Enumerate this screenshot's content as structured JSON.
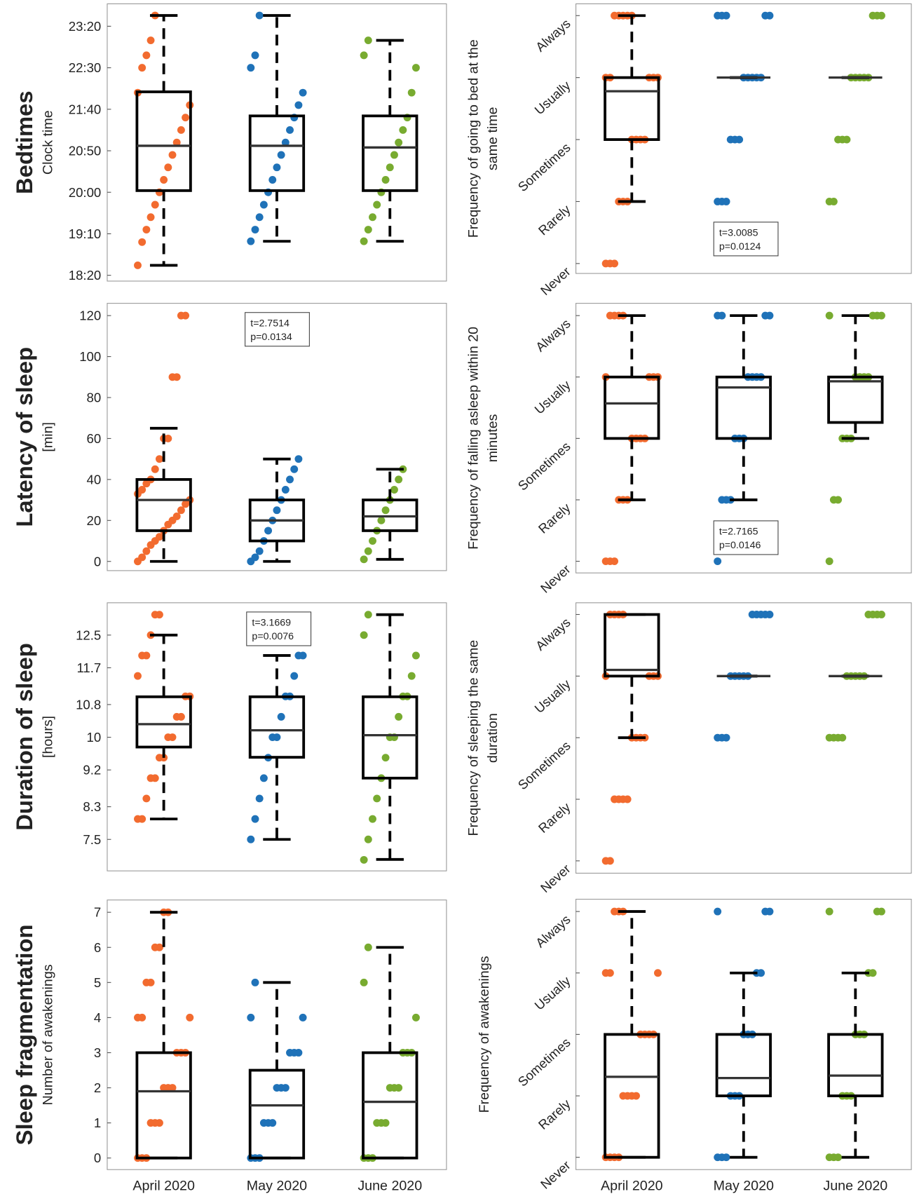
{
  "chart_data": [
    {
      "type": "box",
      "row_title": "Bedtimes",
      "ylabel": [
        "Clock time"
      ],
      "ylim": [
        1093,
        1427
      ],
      "yticks": [
        {
          "value": 1100,
          "label": "18:20"
        },
        {
          "value": 1150,
          "label": "19:10"
        },
        {
          "value": 1200,
          "label": "20:00"
        },
        {
          "value": 1250,
          "label": "20:50"
        },
        {
          "value": 1300,
          "label": "21:40"
        },
        {
          "value": 1350,
          "label": "22:30"
        },
        {
          "value": 1400,
          "label": "23:20"
        }
      ],
      "series": [
        {
          "color": "#f26b2f",
          "box": {
            "low": 1112,
            "q1": 1202,
            "median": 1256,
            "q3": 1321,
            "high": 1413
          },
          "points": [
            1112,
            1140,
            1155,
            1170,
            1185,
            1200,
            1215,
            1230,
            1245,
            1260,
            1275,
            1290,
            1305,
            1320,
            1350,
            1365,
            1383,
            1413
          ]
        },
        {
          "color": "#1f72b8",
          "box": {
            "low": 1141,
            "q1": 1202,
            "median": 1256,
            "q3": 1292,
            "high": 1413
          },
          "points": [
            1141,
            1155,
            1170,
            1185,
            1200,
            1215,
            1230,
            1245,
            1260,
            1275,
            1290,
            1305,
            1320,
            1350,
            1365,
            1413
          ]
        },
        {
          "color": "#78ab30",
          "box": {
            "low": 1141,
            "q1": 1202,
            "median": 1254,
            "q3": 1292,
            "high": 1383
          },
          "points": [
            1141,
            1155,
            1170,
            1185,
            1200,
            1215,
            1230,
            1245,
            1260,
            1275,
            1290,
            1320,
            1350,
            1365,
            1383
          ]
        }
      ]
    },
    {
      "type": "box",
      "ylabel": [
        "Frequency of going to bed at the",
        "same time"
      ],
      "ylim": [
        -0.16,
        4.19
      ],
      "yticks": [
        {
          "value": 0,
          "label": "Never"
        },
        {
          "value": 1,
          "label": "Rarely"
        },
        {
          "value": 2,
          "label": "Sometimes"
        },
        {
          "value": 3,
          "label": "Usually"
        },
        {
          "value": 4,
          "label": "Always"
        }
      ],
      "annotation": [
        "t=3.0085",
        "p=0.0124"
      ],
      "series": [
        {
          "color": "#f26b2f",
          "box": {
            "low": 1,
            "q1": 2,
            "median": 2.78,
            "q3": 3,
            "high": 4
          },
          "points": [
            0,
            0,
            0,
            1,
            1,
            1,
            2,
            2,
            2,
            2,
            3,
            3,
            3,
            3,
            3,
            4,
            4,
            4,
            4,
            4
          ]
        },
        {
          "color": "#1f72b8",
          "box": {
            "low": 3,
            "q1": 3,
            "median": 3,
            "q3": 3,
            "high": 3
          },
          "points": [
            1,
            1,
            1,
            2,
            2,
            2,
            3,
            3,
            3,
            3,
            3,
            4,
            4,
            4,
            4,
            4
          ]
        },
        {
          "color": "#78ab30",
          "box": {
            "low": 3,
            "q1": 3,
            "median": 3,
            "q3": 3,
            "high": 3
          },
          "points": [
            1,
            1,
            2,
            2,
            2,
            3,
            3,
            3,
            3,
            3,
            4,
            4,
            4
          ]
        }
      ]
    },
    {
      "type": "box",
      "row_title": "Latency of sleep",
      "ylabel": [
        "[min]"
      ],
      "ylim": [
        -4.5,
        126
      ],
      "yticks": [
        0,
        20,
        40,
        60,
        80,
        100,
        120
      ],
      "annotation": [
        "t=2.7514",
        "p=0.0134"
      ],
      "series": [
        {
          "color": "#f26b2f",
          "box": {
            "low": 0,
            "q1": 15,
            "median": 30,
            "q3": 40,
            "high": 65
          },
          "points": [
            0,
            2,
            5,
            8,
            10,
            12,
            15,
            18,
            20,
            22,
            25,
            28,
            30,
            33,
            35,
            38,
            40,
            45,
            50,
            60,
            60,
            90,
            90,
            120,
            120
          ]
        },
        {
          "color": "#1f72b8",
          "box": {
            "low": 0,
            "q1": 10,
            "median": 20,
            "q3": 30,
            "high": 50
          },
          "points": [
            0,
            2,
            5,
            10,
            15,
            20,
            25,
            30,
            35,
            40,
            45,
            50
          ]
        },
        {
          "color": "#78ab30",
          "box": {
            "low": 1,
            "q1": 15,
            "median": 22,
            "q3": 30,
            "high": 45
          },
          "points": [
            1,
            5,
            10,
            15,
            20,
            25,
            30,
            35,
            40,
            45
          ]
        }
      ]
    },
    {
      "type": "box",
      "ylabel": [
        "Frequency of falling asleep within 20",
        "minutes"
      ],
      "ylim": [
        -0.19,
        4.2
      ],
      "yticks": [
        {
          "value": 0,
          "label": "Never"
        },
        {
          "value": 1,
          "label": "Rarely"
        },
        {
          "value": 2,
          "label": "Sometimes"
        },
        {
          "value": 3,
          "label": "Usually"
        },
        {
          "value": 4,
          "label": "Always"
        }
      ],
      "annotation": [
        "t=2.7165",
        "p=0.0146"
      ],
      "series": [
        {
          "color": "#f26b2f",
          "box": {
            "low": 1,
            "q1": 2,
            "median": 2.57,
            "q3": 3,
            "high": 4
          },
          "points": [
            0,
            0,
            0,
            1,
            1,
            1,
            2,
            2,
            2,
            2,
            3,
            3,
            3,
            3,
            4,
            4,
            4,
            4
          ]
        },
        {
          "color": "#1f72b8",
          "box": {
            "low": 1,
            "q1": 2,
            "median": 2.83,
            "q3": 3,
            "high": 4
          },
          "points": [
            0,
            1,
            1,
            1,
            2,
            2,
            2,
            3,
            3,
            3,
            3,
            4,
            4,
            4,
            4
          ]
        },
        {
          "color": "#78ab30",
          "box": {
            "low": 2,
            "q1": 2.26,
            "median": 2.93,
            "q3": 3,
            "high": 4
          },
          "points": [
            0,
            1,
            1,
            2,
            2,
            2,
            3,
            3,
            3,
            3,
            4,
            4,
            4,
            4
          ]
        }
      ]
    },
    {
      "type": "box",
      "row_title": "Duration of sleep",
      "ylabel": [
        "[hours]"
      ],
      "ylim": [
        6.73,
        13.29
      ],
      "yticks": [
        7.5,
        8.3,
        9.2,
        10,
        10.8,
        11.7,
        12.5
      ],
      "annotation": [
        "t=3.1669",
        "p=0.0076"
      ],
      "series": [
        {
          "color": "#f26b2f",
          "box": {
            "low": 8,
            "q1": 9.76,
            "median": 10.32,
            "q3": 10.99,
            "high": 12.5
          },
          "points": [
            8,
            8,
            8.5,
            9,
            9,
            9.5,
            9.5,
            10,
            10,
            10.5,
            10.5,
            11,
            11,
            11.5,
            12,
            12,
            12.5,
            13,
            13
          ]
        },
        {
          "color": "#1f72b8",
          "box": {
            "low": 7.5,
            "q1": 9.51,
            "median": 10.17,
            "q3": 10.99,
            "high": 12
          },
          "points": [
            7.5,
            8,
            8.5,
            9,
            9.5,
            10,
            10,
            10.5,
            11,
            11,
            11.5,
            12,
            12
          ]
        },
        {
          "color": "#78ab30",
          "box": {
            "low": 7.01,
            "q1": 9,
            "median": 10.05,
            "q3": 10.99,
            "high": 13
          },
          "points": [
            7,
            7.5,
            8,
            8.5,
            9,
            9.5,
            10,
            10,
            10.5,
            11,
            11,
            11.5,
            12,
            12.5,
            13
          ]
        }
      ]
    },
    {
      "type": "box",
      "ylabel": [
        "Frequency of sleeping the same",
        "duration"
      ],
      "ylim": [
        -0.2,
        4.19
      ],
      "yticks": [
        {
          "value": 0,
          "label": "Never"
        },
        {
          "value": 1,
          "label": "Rarely"
        },
        {
          "value": 2,
          "label": "Sometimes"
        },
        {
          "value": 3,
          "label": "Usually"
        },
        {
          "value": 4,
          "label": "Always"
        }
      ],
      "series": [
        {
          "color": "#f26b2f",
          "box": {
            "low": 2,
            "q1": 3,
            "median": 3.1,
            "q3": 4,
            "high": 4
          },
          "points": [
            0,
            0,
            1,
            1,
            1,
            1,
            2,
            2,
            2,
            2,
            3,
            3,
            3,
            3,
            4,
            4,
            4,
            4
          ]
        },
        {
          "color": "#1f72b8",
          "box": {
            "low": 3,
            "q1": 3,
            "median": 3,
            "q3": 3,
            "high": 3
          },
          "points": [
            2,
            2,
            2,
            3,
            3,
            3,
            3,
            3,
            4,
            4,
            4,
            4,
            4
          ]
        },
        {
          "color": "#78ab30",
          "box": {
            "low": 3,
            "q1": 3,
            "median": 3,
            "q3": 3,
            "high": 3
          },
          "points": [
            2,
            2,
            2,
            2,
            3,
            3,
            3,
            3,
            3,
            4,
            4,
            4,
            4
          ]
        }
      ]
    },
    {
      "type": "box",
      "row_title": "Sleep fragmentation",
      "ylabel": [
        "Number of awakenings"
      ],
      "ylim": [
        -0.33,
        7.35
      ],
      "yticks": [
        0,
        1,
        2,
        3,
        4,
        5,
        6,
        7
      ],
      "categories": [
        "April 2020",
        "May 2020",
        "June 2020"
      ],
      "series": [
        {
          "color": "#f26b2f",
          "box": {
            "low": 0,
            "q1": 0,
            "median": 1.9,
            "q3": 3,
            "high": 7
          },
          "points": [
            0,
            0,
            0,
            1,
            1,
            1,
            2,
            2,
            2,
            3,
            3,
            3,
            4,
            4,
            4,
            5,
            5,
            6,
            6,
            7,
            7
          ]
        },
        {
          "color": "#1f72b8",
          "box": {
            "low": 0,
            "q1": 0,
            "median": 1.5,
            "q3": 2.5,
            "high": 5
          },
          "points": [
            0,
            0,
            0,
            1,
            1,
            1,
            2,
            2,
            2,
            3,
            3,
            3,
            4,
            4,
            5
          ]
        },
        {
          "color": "#78ab30",
          "box": {
            "low": 0,
            "q1": 0,
            "median": 1.6,
            "q3": 3,
            "high": 6
          },
          "points": [
            0,
            0,
            0,
            1,
            1,
            1,
            2,
            2,
            2,
            3,
            3,
            3,
            4,
            5,
            6
          ]
        }
      ]
    },
    {
      "type": "box",
      "ylabel": [
        "Frequency of awakenings"
      ],
      "ylim": [
        -0.2,
        4.2
      ],
      "yticks": [
        {
          "value": 0,
          "label": "Never"
        },
        {
          "value": 1,
          "label": "Rarely"
        },
        {
          "value": 2,
          "label": "Sometimes"
        },
        {
          "value": 3,
          "label": "Usually"
        },
        {
          "value": 4,
          "label": "Always"
        }
      ],
      "categories": [
        "April 2020",
        "May 2020",
        "June 2020"
      ],
      "series": [
        {
          "color": "#f26b2f",
          "box": {
            "low": 0,
            "q1": 0,
            "median": 1.31,
            "q3": 2,
            "high": 4
          },
          "points": [
            0,
            0,
            0,
            0,
            1,
            1,
            1,
            1,
            2,
            2,
            2,
            2,
            3,
            3,
            3,
            4,
            4,
            4
          ]
        },
        {
          "color": "#1f72b8",
          "box": {
            "low": 0,
            "q1": 1,
            "median": 1.29,
            "q3": 2,
            "high": 3
          },
          "points": [
            0,
            0,
            0,
            1,
            1,
            1,
            2,
            2,
            2,
            3,
            3,
            4,
            4,
            4
          ]
        },
        {
          "color": "#78ab30",
          "box": {
            "low": 0,
            "q1": 1,
            "median": 1.33,
            "q3": 2,
            "high": 3
          },
          "points": [
            0,
            0,
            0,
            1,
            1,
            1,
            2,
            2,
            2,
            3,
            3,
            4,
            4,
            4
          ]
        }
      ]
    }
  ]
}
